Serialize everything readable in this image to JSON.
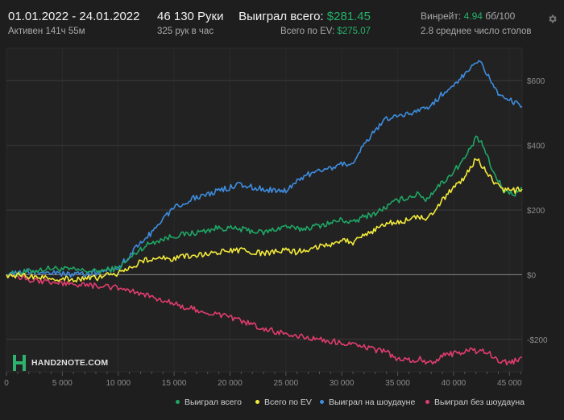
{
  "header": {
    "date_range": "01.01.2022 - 24.01.2022",
    "active_time": "Активен 141ч 55м",
    "hands": "46 130 Руки",
    "hands_per_hour": "325 рук в час",
    "won_total_label": "Выиграл всего: ",
    "won_total_value": "$281.45",
    "ev_total_label": "Всего по EV: ",
    "ev_total_value": "$275.07",
    "winrate_label": "Винрейт: ",
    "winrate_value": "4.94",
    "winrate_unit": " бб/100",
    "avg_tables": "2.8 среднее число столов",
    "settings_icon": "gear-icon"
  },
  "logo": {
    "text": "HAND2NOTE.COM"
  },
  "colors": {
    "won_total": "#1fa765",
    "ev": "#f2ea3a",
    "showdown": "#3e8de0",
    "no_showdown": "#e03c6e",
    "accent": "#25b36a"
  },
  "chart_data": {
    "type": "line",
    "xlabel": "",
    "ylabel": "",
    "xlim": [
      0,
      46130
    ],
    "ylim": [
      -300,
      700
    ],
    "x_ticks": [
      0,
      5000,
      10000,
      15000,
      20000,
      25000,
      30000,
      35000,
      40000,
      45000
    ],
    "x_tick_labels": [
      "0",
      "5 000",
      "10 000",
      "15 000",
      "20 000",
      "25 000",
      "30 000",
      "35 000",
      "40 000",
      "45 000"
    ],
    "y_ticks": [
      -200,
      0,
      200,
      400,
      600
    ],
    "y_tick_labels": [
      "-$200",
      "$0",
      "$200",
      "$400",
      "$600"
    ],
    "legend_position": "bottom-right",
    "grid": true,
    "series": [
      {
        "name": "Выиграл всего",
        "color_key": "won_total",
        "x": [
          0,
          2000,
          4000,
          6000,
          8000,
          10000,
          11000,
          12000,
          13000,
          15000,
          17000,
          19000,
          21000,
          23000,
          25000,
          26000,
          27000,
          29000,
          30000,
          31000,
          32000,
          33000,
          34000,
          35000,
          36000,
          37000,
          37500,
          38500,
          39500,
          41000,
          42000,
          42500,
          43500,
          44500,
          45500,
          46130
        ],
        "y": [
          0,
          10,
          20,
          15,
          10,
          20,
          50,
          80,
          100,
          120,
          130,
          145,
          140,
          130,
          150,
          140,
          145,
          160,
          170,
          160,
          180,
          190,
          210,
          230,
          240,
          250,
          230,
          270,
          300,
          360,
          420,
          410,
          320,
          260,
          250,
          270
        ]
      },
      {
        "name": "Всего по EV",
        "color_key": "ev",
        "x": [
          0,
          2000,
          4000,
          6000,
          8000,
          10000,
          11000,
          12000,
          13000,
          15000,
          17000,
          19000,
          21000,
          23000,
          25000,
          26000,
          27000,
          29000,
          30000,
          31000,
          32000,
          33000,
          34000,
          35000,
          36000,
          37000,
          37500,
          38500,
          39500,
          41000,
          42000,
          42500,
          43500,
          44500,
          45500,
          46130
        ],
        "y": [
          0,
          -5,
          -10,
          -15,
          -10,
          5,
          20,
          40,
          50,
          50,
          60,
          70,
          75,
          65,
          75,
          70,
          80,
          95,
          110,
          100,
          120,
          140,
          160,
          160,
          170,
          180,
          160,
          210,
          250,
          300,
          360,
          340,
          290,
          260,
          260,
          265
        ]
      },
      {
        "name": "Выиграл на шоудауне",
        "color_key": "showdown",
        "x": [
          0,
          2000,
          4000,
          6000,
          8000,
          10000,
          11000,
          12000,
          13000,
          14000,
          15000,
          17000,
          19000,
          21000,
          22000,
          24000,
          25000,
          26000,
          27000,
          29000,
          31000,
          32000,
          33000,
          34000,
          36000,
          38000,
          39000,
          40000,
          41000,
          42000,
          42500,
          43000,
          44000,
          45000,
          46130
        ],
        "y": [
          0,
          10,
          5,
          0,
          5,
          20,
          60,
          100,
          130,
          170,
          210,
          240,
          260,
          280,
          270,
          260,
          260,
          290,
          310,
          330,
          350,
          400,
          450,
          480,
          500,
          520,
          560,
          590,
          620,
          650,
          660,
          620,
          560,
          540,
          520
        ]
      },
      {
        "name": "Выиграл без шоудауна",
        "color_key": "no_showdown",
        "x": [
          0,
          2000,
          4000,
          6000,
          8000,
          10000,
          12000,
          14000,
          16000,
          18000,
          20000,
          22000,
          24000,
          26000,
          28000,
          30000,
          32000,
          34000,
          35000,
          36000,
          37000,
          38000,
          39000,
          40000,
          41000,
          42000,
          43000,
          44000,
          45000,
          46130
        ],
        "y": [
          0,
          -15,
          -25,
          -30,
          -35,
          -40,
          -60,
          -80,
          -100,
          -115,
          -130,
          -155,
          -175,
          -190,
          -200,
          -210,
          -225,
          -240,
          -260,
          -265,
          -260,
          -275,
          -250,
          -245,
          -235,
          -235,
          -240,
          -265,
          -275,
          -255
        ]
      }
    ]
  }
}
